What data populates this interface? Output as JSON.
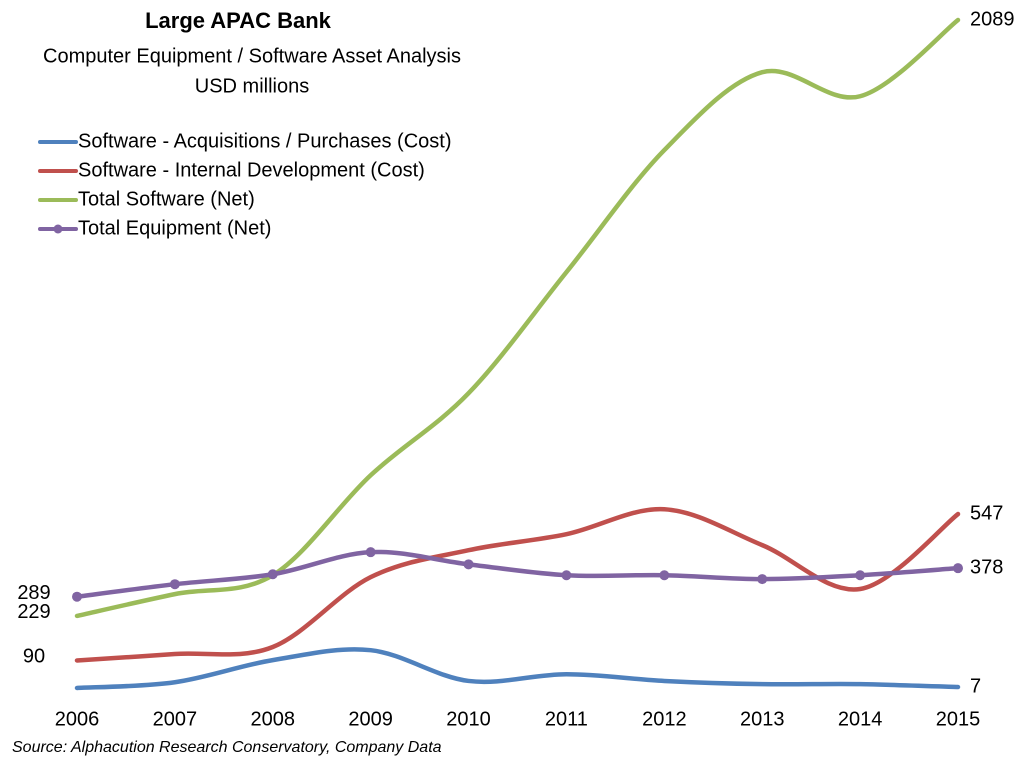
{
  "chart_data": {
    "type": "line",
    "title": "Large APAC Bank",
    "subtitle": [
      "Computer Equipment / Software Asset Analysis",
      "USD millions"
    ],
    "source": "Source: Alphacution Research Conservatory, Company Data",
    "categories": [
      "2006",
      "2007",
      "2008",
      "2009",
      "2010",
      "2011",
      "2012",
      "2013",
      "2014",
      "2015"
    ],
    "series": [
      {
        "name": "Software - Acquisitions / Purchases (Cost)",
        "color": "#4f81bd",
        "markers": false,
        "values": [
          4,
          22,
          91,
          122,
          26,
          47,
          26,
          16,
          16,
          7
        ],
        "value_labels": [
          null,
          null,
          null,
          null,
          null,
          null,
          null,
          null,
          null,
          "7"
        ]
      },
      {
        "name": "Software - Internal Development (Cost)",
        "color": "#c0504d",
        "markers": false,
        "values": [
          90,
          110,
          132,
          350,
          434,
          484,
          562,
          450,
          313,
          547
        ],
        "value_labels": [
          "90",
          null,
          null,
          null,
          null,
          null,
          null,
          null,
          null,
          "547"
        ]
      },
      {
        "name": "Total Software (Net)",
        "color": "#9bbb59",
        "markers": false,
        "values": [
          229,
          297,
          356,
          668,
          924,
          1302,
          1683,
          1926,
          1851,
          2089
        ],
        "value_labels": [
          "229",
          null,
          null,
          null,
          null,
          null,
          null,
          null,
          null,
          "2089"
        ]
      },
      {
        "name": "Total Equipment (Net)",
        "color": "#8064a2",
        "markers": true,
        "values": [
          289,
          328,
          359,
          428,
          390,
          356,
          356,
          344,
          356,
          378
        ],
        "value_labels": [
          "289",
          null,
          null,
          null,
          null,
          null,
          null,
          null,
          null,
          "378"
        ]
      }
    ]
  }
}
